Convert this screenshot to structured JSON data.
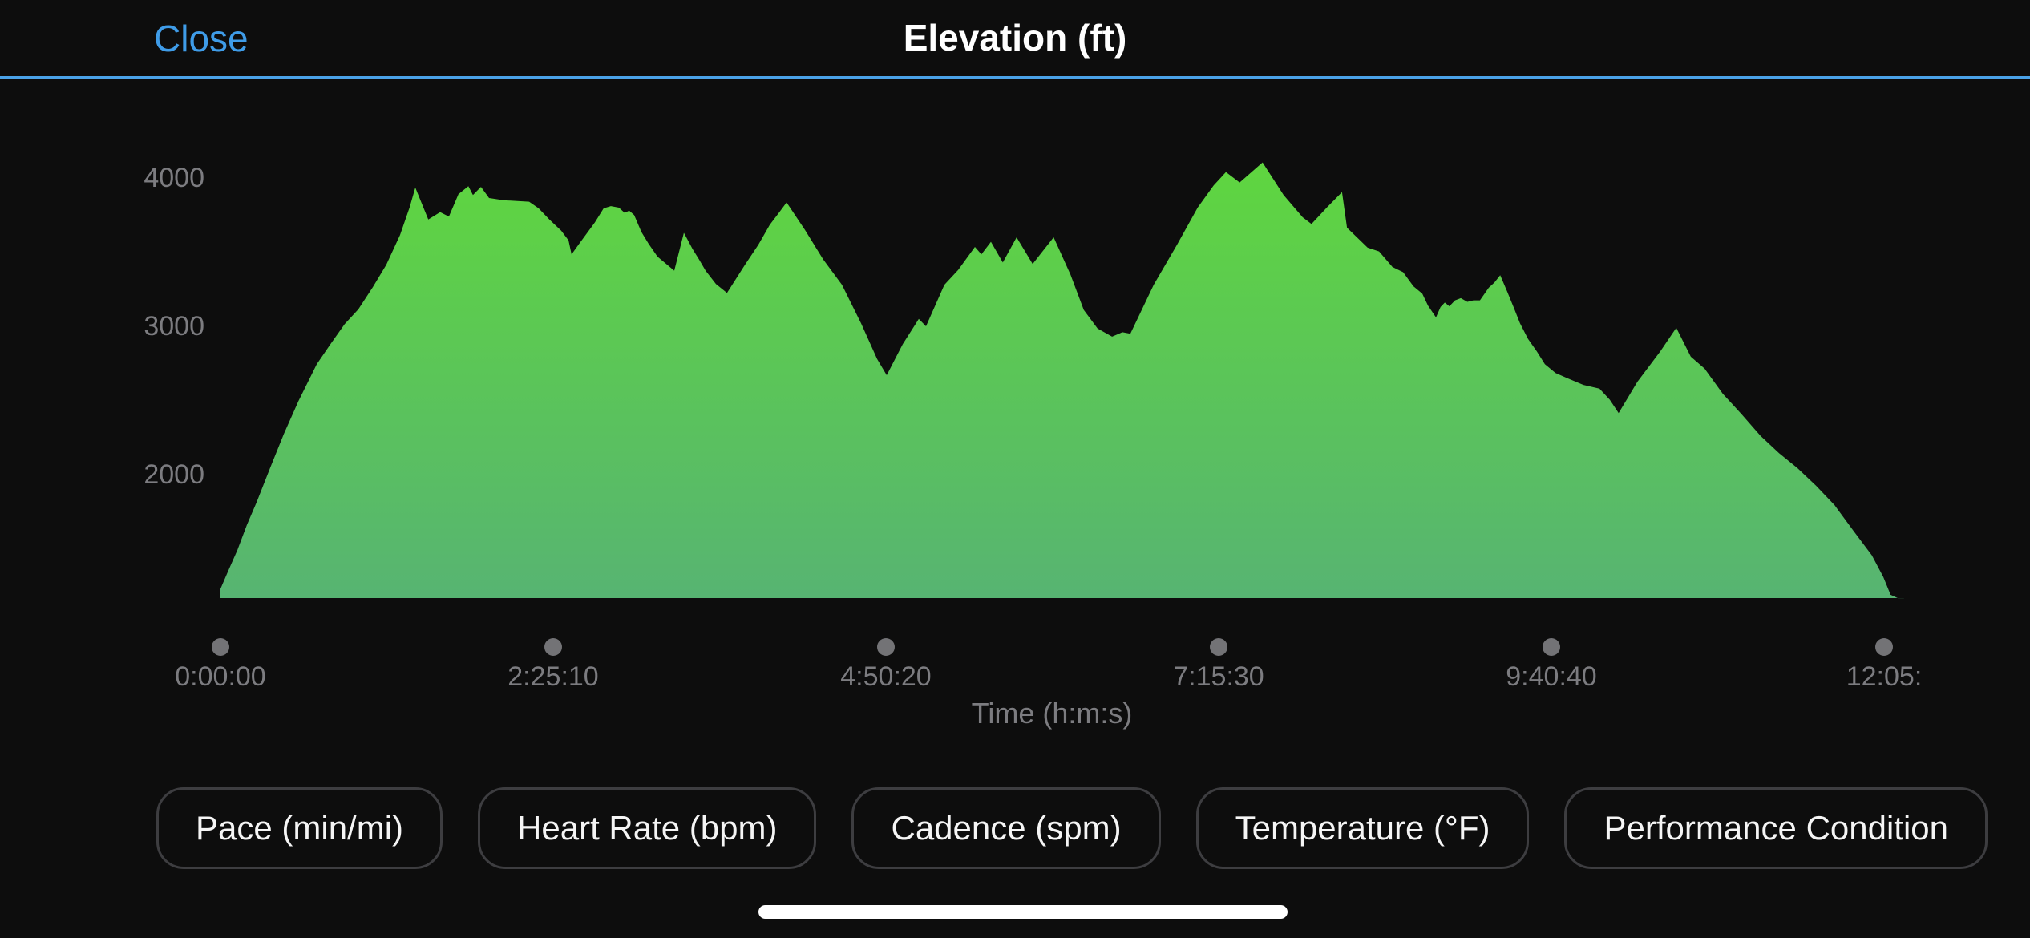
{
  "header": {
    "close_label": "Close",
    "title": "Elevation (ft)",
    "accent_color": "#4aa2e8"
  },
  "chart_data": {
    "type": "area",
    "title": "Elevation (ft)",
    "xlabel": "Time (h:m:s)",
    "ylabel": "Elevation (ft)",
    "x_unit": "seconds",
    "y_unit": "ft",
    "grid": false,
    "legend": "none",
    "y_ticks": [
      4000,
      3000,
      2000
    ],
    "x_ticks": [
      {
        "label": "0:00:00",
        "t": 0
      },
      {
        "label": "2:25:10",
        "t": 8710
      },
      {
        "label": "4:50:20",
        "t": 17420
      },
      {
        "label": "7:15:30",
        "t": 26130
      },
      {
        "label": "9:40:40",
        "t": 34840
      },
      {
        "label": "12:05:",
        "t": 43550
      }
    ],
    "xlim": [
      0,
      44070
    ],
    "ylim": [
      1167,
      4300
    ],
    "fill_gradient": {
      "top": "#5fd63f",
      "bottom": "#57b472"
    },
    "axis_text_color": "#7c7c80",
    "tick_dot_color": "#737376",
    "points": [
      [
        0,
        1230
      ],
      [
        210,
        1355
      ],
      [
        440,
        1490
      ],
      [
        690,
        1660
      ],
      [
        940,
        1810
      ],
      [
        1300,
        2045
      ],
      [
        1660,
        2275
      ],
      [
        2040,
        2495
      ],
      [
        2520,
        2745
      ],
      [
        2880,
        2880
      ],
      [
        3250,
        3015
      ],
      [
        3610,
        3115
      ],
      [
        3990,
        3265
      ],
      [
        4340,
        3415
      ],
      [
        4700,
        3615
      ],
      [
        4950,
        3800
      ],
      [
        5100,
        3935
      ],
      [
        5440,
        3720
      ],
      [
        5750,
        3770
      ],
      [
        5980,
        3740
      ],
      [
        6230,
        3890
      ],
      [
        6490,
        3945
      ],
      [
        6610,
        3885
      ],
      [
        6820,
        3940
      ],
      [
        7030,
        3865
      ],
      [
        7410,
        3850
      ],
      [
        7770,
        3845
      ],
      [
        8080,
        3840
      ],
      [
        8330,
        3795
      ],
      [
        8610,
        3720
      ],
      [
        8920,
        3645
      ],
      [
        9110,
        3580
      ],
      [
        9190,
        3485
      ],
      [
        9400,
        3560
      ],
      [
        9800,
        3700
      ],
      [
        10030,
        3795
      ],
      [
        10220,
        3810
      ],
      [
        10430,
        3800
      ],
      [
        10580,
        3765
      ],
      [
        10700,
        3780
      ],
      [
        10830,
        3750
      ],
      [
        11020,
        3635
      ],
      [
        11210,
        3555
      ],
      [
        11440,
        3470
      ],
      [
        11670,
        3420
      ],
      [
        11880,
        3375
      ],
      [
        12130,
        3630
      ],
      [
        12360,
        3520
      ],
      [
        12530,
        3450
      ],
      [
        12700,
        3375
      ],
      [
        12970,
        3285
      ],
      [
        13260,
        3225
      ],
      [
        13730,
        3415
      ],
      [
        14080,
        3550
      ],
      [
        14380,
        3685
      ],
      [
        14630,
        3770
      ],
      [
        14820,
        3835
      ],
      [
        15300,
        3650
      ],
      [
        15780,
        3450
      ],
      [
        16270,
        3280
      ],
      [
        16770,
        3020
      ],
      [
        17190,
        2780
      ],
      [
        17440,
        2670
      ],
      [
        17860,
        2880
      ],
      [
        18280,
        3050
      ],
      [
        18470,
        3000
      ],
      [
        18950,
        3280
      ],
      [
        19310,
        3380
      ],
      [
        19750,
        3535
      ],
      [
        19920,
        3485
      ],
      [
        20170,
        3570
      ],
      [
        20480,
        3430
      ],
      [
        20840,
        3600
      ],
      [
        21260,
        3420
      ],
      [
        21810,
        3600
      ],
      [
        22250,
        3350
      ],
      [
        22600,
        3110
      ],
      [
        22960,
        2985
      ],
      [
        23340,
        2930
      ],
      [
        23610,
        2960
      ],
      [
        23820,
        2950
      ],
      [
        24430,
        3280
      ],
      [
        25040,
        3550
      ],
      [
        25580,
        3800
      ],
      [
        26000,
        3950
      ],
      [
        26320,
        4040
      ],
      [
        26680,
        3970
      ],
      [
        27280,
        4105
      ],
      [
        27830,
        3885
      ],
      [
        28330,
        3735
      ],
      [
        28560,
        3690
      ],
      [
        28960,
        3800
      ],
      [
        29360,
        3905
      ],
      [
        29490,
        3665
      ],
      [
        30030,
        3530
      ],
      [
        30330,
        3505
      ],
      [
        30680,
        3400
      ],
      [
        30960,
        3365
      ],
      [
        31230,
        3270
      ],
      [
        31460,
        3220
      ],
      [
        31610,
        3140
      ],
      [
        31820,
        3060
      ],
      [
        31940,
        3130
      ],
      [
        32050,
        3160
      ],
      [
        32170,
        3135
      ],
      [
        32320,
        3175
      ],
      [
        32470,
        3190
      ],
      [
        32640,
        3165
      ],
      [
        32800,
        3175
      ],
      [
        32970,
        3175
      ],
      [
        33200,
        3260
      ],
      [
        33350,
        3295
      ],
      [
        33500,
        3345
      ],
      [
        33690,
        3230
      ],
      [
        33850,
        3130
      ],
      [
        34020,
        3020
      ],
      [
        34230,
        2915
      ],
      [
        34460,
        2830
      ],
      [
        34670,
        2745
      ],
      [
        34950,
        2685
      ],
      [
        35260,
        2650
      ],
      [
        35680,
        2605
      ],
      [
        36100,
        2580
      ],
      [
        36370,
        2505
      ],
      [
        36600,
        2415
      ],
      [
        37090,
        2625
      ],
      [
        37690,
        2830
      ],
      [
        38110,
        2990
      ],
      [
        38490,
        2795
      ],
      [
        38850,
        2715
      ],
      [
        39330,
        2545
      ],
      [
        39810,
        2410
      ],
      [
        40320,
        2260
      ],
      [
        40800,
        2145
      ],
      [
        41280,
        2045
      ],
      [
        41770,
        1925
      ],
      [
        42250,
        1795
      ],
      [
        42750,
        1620
      ],
      [
        43230,
        1455
      ],
      [
        43530,
        1310
      ],
      [
        43720,
        1190
      ],
      [
        43910,
        1167
      ],
      [
        44070,
        1167
      ]
    ]
  },
  "buttons": [
    "Pace (min/mi)",
    "Heart Rate (bpm)",
    "Cadence (spm)",
    "Temperature (°F)",
    "Performance Condition"
  ]
}
